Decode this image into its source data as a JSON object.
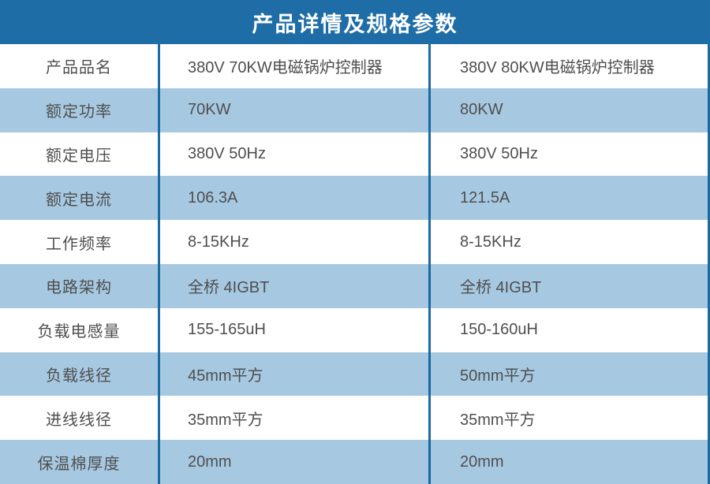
{
  "title": "产品详情及规格参数",
  "colors": {
    "header_bg": "#1e6da6",
    "row_alt_bg": "#a6c9e1",
    "divider": "#1a6aa3",
    "text": "#4f4f4f",
    "title_text": "#ffffff"
  },
  "table": {
    "rows": [
      {
        "label": "产品品名",
        "col1": "380V 70KW电磁锅炉控制器",
        "col2": "380V 80KW电磁锅炉控制器"
      },
      {
        "label": "额定功率",
        "col1": "70KW",
        "col2": "80KW"
      },
      {
        "label": "额定电压",
        "col1": "380V 50Hz",
        "col2": "380V 50Hz"
      },
      {
        "label": "额定电流",
        "col1": "106.3A",
        "col2": "121.5A"
      },
      {
        "label": "工作频率",
        "col1": "8-15KHz",
        "col2": "8-15KHz"
      },
      {
        "label": "电路架构",
        "col1": "全桥 4IGBT",
        "col2": "全桥 4IGBT"
      },
      {
        "label": "负载电感量",
        "col1": "155-165uH",
        "col2": "150-160uH"
      },
      {
        "label": "负载线径",
        "col1": "45mm平方",
        "col2": "50mm平方"
      },
      {
        "label": "进线线径",
        "col1": "35mm平方",
        "col2": "35mm平方"
      },
      {
        "label": "保温棉厚度",
        "col1": "20mm",
        "col2": "20mm"
      }
    ]
  }
}
